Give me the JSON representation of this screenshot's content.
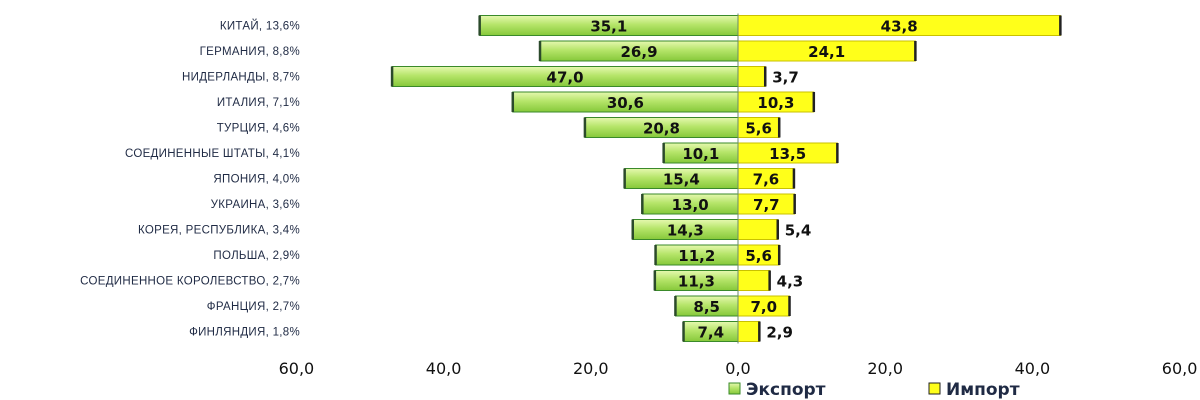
{
  "colors": {
    "export_fill_top": "#d4f08a",
    "export_fill_bottom": "#8fd03a",
    "export_stroke": "#3a8a2a",
    "import_fill": "#ffff1a",
    "import_stroke": "#222222"
  },
  "chart_data": {
    "type": "bar",
    "orientation": "horizontal",
    "categories": [
      "КИТАЙ, 13,6%",
      "ГЕРМАНИЯ, 8,8%",
      "НИДЕРЛАНДЫ, 8,7%",
      "ИТАЛИЯ, 7,1%",
      "ТУРЦИЯ, 4,6%",
      "СОЕДИНЕННЫЕ ШТАТЫ, 4,1%",
      "ЯПОНИЯ, 4,0%",
      "УКРАИНА, 3,6%",
      "КОРЕЯ, РЕСПУБЛИКА, 3,4%",
      "ПОЛЬША, 2,9%",
      "СОЕДИНЕННОЕ КОРОЛЕВСТВО, 2,7%",
      "ФРАНЦИЯ, 2,7%",
      "ФИНЛЯНДИЯ, 1,8%"
    ],
    "series": [
      {
        "name": "Экспорт",
        "direction": "left",
        "values": [
          35.1,
          26.9,
          47.0,
          30.6,
          20.8,
          10.1,
          15.4,
          13.0,
          14.3,
          11.2,
          11.3,
          8.5,
          7.4
        ],
        "labels": [
          "35,1",
          "26,9",
          "47,0",
          "30,6",
          "20,8",
          "10,1",
          "15,4",
          "13,0",
          "14,3",
          "11,2",
          "11,3",
          "8,5",
          "7,4"
        ]
      },
      {
        "name": "Импорт",
        "direction": "right",
        "values": [
          43.8,
          24.1,
          3.7,
          10.3,
          5.6,
          13.5,
          7.6,
          7.7,
          5.4,
          5.6,
          4.3,
          7.0,
          2.9
        ],
        "labels": [
          "43,8",
          "24,1",
          "3,7",
          "10,3",
          "5,6",
          "13,5",
          "7,6",
          "7,7",
          "5,4",
          "5,6",
          "4,3",
          "7,0",
          "2,9"
        ]
      }
    ],
    "x_ticks": [
      -60,
      -40,
      -20,
      0,
      20,
      40,
      60
    ],
    "x_tick_labels": [
      "60,0",
      "40,0",
      "20,0",
      "0,0",
      "20,0",
      "40,0",
      "60,0"
    ],
    "xlim": [
      -60,
      60
    ],
    "grid": false,
    "legend_position": "bottom-right",
    "title": "",
    "xlabel": "",
    "ylabel": ""
  }
}
